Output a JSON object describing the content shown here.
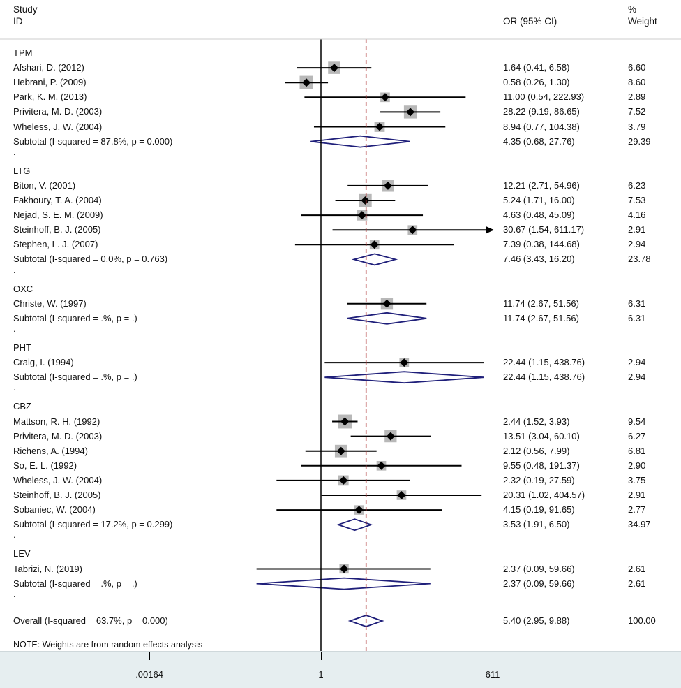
{
  "header": {
    "study_label": "Study",
    "id_label": "ID",
    "or_label": "OR (95% CI)",
    "pct_label": "%",
    "weight_label": "Weight"
  },
  "axis": {
    "ticks": [
      {
        "value": 0.00164,
        "label": ".00164"
      },
      {
        "value": 1,
        "label": "1"
      },
      {
        "value": 611,
        "label": "611"
      }
    ],
    "null_value": 1,
    "overall_reference": 5.4
  },
  "note": "NOTE: Weights are from random effects analysis",
  "chart_data": {
    "type": "forest",
    "title": "",
    "xlabel": "OR (95% CI)",
    "scale": "log",
    "xlim": [
      0.00164,
      611
    ],
    "groups": [
      {
        "name": "TPM",
        "studies": [
          {
            "study": "Afshari, D. (2012)",
            "or": 1.64,
            "lo": 0.41,
            "hi": 6.58,
            "ci_text": "1.64 (0.41, 6.58)",
            "weight": "6.60"
          },
          {
            "study": "Hebrani, P. (2009)",
            "or": 0.58,
            "lo": 0.26,
            "hi": 1.3,
            "ci_text": "0.58 (0.26, 1.30)",
            "weight": "8.60"
          },
          {
            "study": "Park, K. M. (2013)",
            "or": 11.0,
            "lo": 0.54,
            "hi": 222.93,
            "ci_text": "11.00 (0.54, 222.93)",
            "weight": "2.89"
          },
          {
            "study": "Privitera, M. D. (2003)",
            "or": 28.22,
            "lo": 9.19,
            "hi": 86.65,
            "ci_text": "28.22 (9.19, 86.65)",
            "weight": "7.52"
          },
          {
            "study": "Wheless, J. W. (2004)",
            "or": 8.94,
            "lo": 0.77,
            "hi": 104.38,
            "ci_text": "8.94 (0.77, 104.38)",
            "weight": "3.79"
          }
        ],
        "subtotal": {
          "label": "Subtotal  (I-squared = 87.8%, p = 0.000)",
          "or": 4.35,
          "lo": 0.68,
          "hi": 27.76,
          "ci_text": "4.35 (0.68, 27.76)",
          "weight": "29.39"
        }
      },
      {
        "name": "LTG",
        "studies": [
          {
            "study": "Biton, V. (2001)",
            "or": 12.21,
            "lo": 2.71,
            "hi": 54.96,
            "ci_text": "12.21 (2.71, 54.96)",
            "weight": "6.23"
          },
          {
            "study": "Fakhoury, T. A. (2004)",
            "or": 5.24,
            "lo": 1.71,
            "hi": 16.0,
            "ci_text": "5.24 (1.71, 16.00)",
            "weight": "7.53"
          },
          {
            "study": "Nejad, S. E. M. (2009)",
            "or": 4.63,
            "lo": 0.48,
            "hi": 45.09,
            "ci_text": "4.63 (0.48, 45.09)",
            "weight": "4.16"
          },
          {
            "study": "Steinhoff, B. J. (2005)",
            "or": 30.67,
            "lo": 1.54,
            "hi": 611.17,
            "ci_text": "30.67 (1.54, 611.17)",
            "weight": "2.91",
            "arrow": true
          },
          {
            "study": "Stephen, L. J. (2007)",
            "or": 7.39,
            "lo": 0.38,
            "hi": 144.68,
            "ci_text": "7.39 (0.38, 144.68)",
            "weight": "2.94"
          }
        ],
        "subtotal": {
          "label": "Subtotal  (I-squared = 0.0%, p = 0.763)",
          "or": 7.46,
          "lo": 3.43,
          "hi": 16.2,
          "ci_text": "7.46 (3.43, 16.20)",
          "weight": "23.78"
        }
      },
      {
        "name": "OXC",
        "studies": [
          {
            "study": "Christe, W. (1997)",
            "or": 11.74,
            "lo": 2.67,
            "hi": 51.56,
            "ci_text": "11.74 (2.67, 51.56)",
            "weight": "6.31"
          }
        ],
        "subtotal": {
          "label": "Subtotal  (I-squared = .%, p = .)",
          "or": 11.74,
          "lo": 2.67,
          "hi": 51.56,
          "ci_text": "11.74 (2.67, 51.56)",
          "weight": "6.31"
        }
      },
      {
        "name": "PHT",
        "studies": [
          {
            "study": "Craig, I. (1994)",
            "or": 22.44,
            "lo": 1.15,
            "hi": 438.76,
            "ci_text": "22.44 (1.15, 438.76)",
            "weight": "2.94"
          }
        ],
        "subtotal": {
          "label": "Subtotal  (I-squared = .%, p = .)",
          "or": 22.44,
          "lo": 1.15,
          "hi": 438.76,
          "ci_text": "22.44 (1.15, 438.76)",
          "weight": "2.94"
        }
      },
      {
        "name": "CBZ",
        "studies": [
          {
            "study": "Mattson, R. H. (1992)",
            "or": 2.44,
            "lo": 1.52,
            "hi": 3.93,
            "ci_text": "2.44 (1.52, 3.93)",
            "weight": "9.54"
          },
          {
            "study": "Privitera, M. D. (2003)",
            "or": 13.51,
            "lo": 3.04,
            "hi": 60.1,
            "ci_text": "13.51 (3.04, 60.10)",
            "weight": "6.27"
          },
          {
            "study": "Richens, A. (1994)",
            "or": 2.12,
            "lo": 0.56,
            "hi": 7.99,
            "ci_text": "2.12 (0.56, 7.99)",
            "weight": "6.81"
          },
          {
            "study": "So, E. L. (1992)",
            "or": 9.55,
            "lo": 0.48,
            "hi": 191.37,
            "ci_text": "9.55 (0.48, 191.37)",
            "weight": "2.90"
          },
          {
            "study": "Wheless, J. W. (2004)",
            "or": 2.32,
            "lo": 0.19,
            "hi": 27.59,
            "ci_text": "2.32 (0.19, 27.59)",
            "weight": "3.75"
          },
          {
            "study": "Steinhoff, B. J. (2005)",
            "or": 20.31,
            "lo": 1.02,
            "hi": 404.57,
            "ci_text": "20.31 (1.02, 404.57)",
            "weight": "2.91"
          },
          {
            "study": "Sobaniec, W. (2004)",
            "or": 4.15,
            "lo": 0.19,
            "hi": 91.65,
            "ci_text": "4.15 (0.19, 91.65)",
            "weight": "2.77"
          }
        ],
        "subtotal": {
          "label": "Subtotal  (I-squared = 17.2%, p = 0.299)",
          "or": 3.53,
          "lo": 1.91,
          "hi": 6.5,
          "ci_text": "3.53 (1.91, 6.50)",
          "weight": "34.97"
        }
      },
      {
        "name": "LEV",
        "studies": [
          {
            "study": "Tabrizi, N. (2019)",
            "or": 2.37,
            "lo": 0.09,
            "hi": 59.66,
            "ci_text": "2.37 (0.09, 59.66)",
            "weight": "2.61"
          }
        ],
        "subtotal": {
          "label": "Subtotal  (I-squared = .%, p = .)",
          "or": 2.37,
          "lo": 0.09,
          "hi": 59.66,
          "ci_text": "2.37 (0.09, 59.66)",
          "weight": "2.61"
        }
      }
    ],
    "overall": {
      "label": "Overall  (I-squared = 63.7%, p = 0.000)",
      "or": 5.4,
      "lo": 2.95,
      "hi": 9.88,
      "ci_text": "5.40 (2.95, 9.88)",
      "weight": "100.00"
    }
  },
  "colors": {
    "diamond": "#1f1f7a",
    "reference_line": "#b03a3a",
    "weight_box": "#b8b8b8",
    "axis_band": "#e6eef0"
  }
}
